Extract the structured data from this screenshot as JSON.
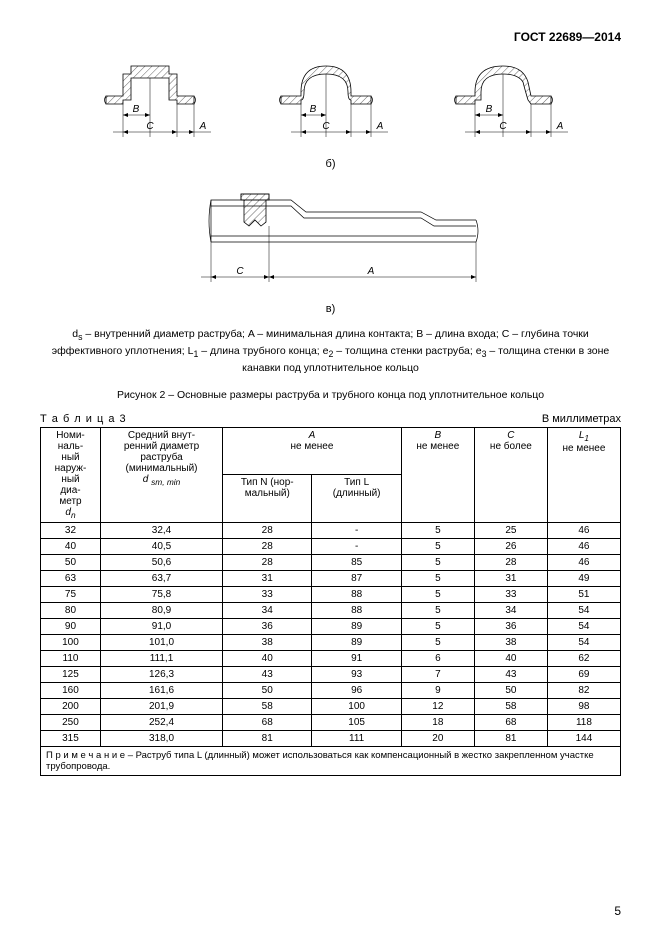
{
  "doc_header": "ГОСТ 22689—2014",
  "sublabel_b": "б)",
  "sublabel_v": "в)",
  "legend": "d<sub>s</sub> – внутренний диаметр раструба; A – минимальная длина контакта; B – длина входа; C – глубина точки эффективного уплотнения; L<sub>1</sub> – длина трубного конца; e<sub>2</sub> – толщина стенки раструба; e<sub>3</sub> – толщина стенки в зоне канавки под уплотнительное кольцо",
  "figure_caption": "Рисунок 2 – Основные размеры раструба и трубного конца под уплотнительное кольцо",
  "table_label": "Т а б л и ц а   3",
  "table_units": "В миллиметрах",
  "table": {
    "headers": {
      "col0_l1": "Номи-",
      "col0_l2": "наль-",
      "col0_l3": "ный",
      "col0_l4": "наруж-",
      "col0_l5": "ный",
      "col0_l6": "диа-",
      "col0_l7": "метр",
      "col0_sym": "d<sub>n</sub>",
      "col1_l1": "Средний внут-",
      "col1_l2": "ренний диаметр",
      "col1_l3": "раструба",
      "col1_l4": "(минимальный)",
      "col1_sym": "d <sub>sm, min</sub>",
      "colA": "A",
      "colA_sub": "не менее",
      "colA_N": "Тип N (нор-",
      "colA_N2": "мальный)",
      "colA_L": "Тип L",
      "colA_L2": "(длинный)",
      "colB": "B",
      "colB_sub": "не менее",
      "colC": "C",
      "colC_sub": "не более",
      "colL1": "L<sub>1</sub>",
      "colL1_sub": "не менее"
    },
    "rows": [
      [
        "32",
        "32,4",
        "28",
        "-",
        "5",
        "25",
        "46"
      ],
      [
        "40",
        "40,5",
        "28",
        "-",
        "5",
        "26",
        "46"
      ],
      [
        "50",
        "50,6",
        "28",
        "85",
        "5",
        "28",
        "46"
      ],
      [
        "63",
        "63,7",
        "31",
        "87",
        "5",
        "31",
        "49"
      ],
      [
        "75",
        "75,8",
        "33",
        "88",
        "5",
        "33",
        "51"
      ],
      [
        "80",
        "80,9",
        "34",
        "88",
        "5",
        "34",
        "54"
      ],
      [
        "90",
        "91,0",
        "36",
        "89",
        "5",
        "36",
        "54"
      ],
      [
        "100",
        "101,0",
        "38",
        "89",
        "5",
        "38",
        "54"
      ],
      [
        "110",
        "111,1",
        "40",
        "91",
        "6",
        "40",
        "62"
      ],
      [
        "125",
        "126,3",
        "43",
        "93",
        "7",
        "43",
        "69"
      ],
      [
        "160",
        "161,6",
        "50",
        "96",
        "9",
        "50",
        "82"
      ],
      [
        "200",
        "201,9",
        "58",
        "100",
        "12",
        "58",
        "98"
      ],
      [
        "250",
        "252,4",
        "68",
        "105",
        "18",
        "68",
        "118"
      ],
      [
        "315",
        "318,0",
        "81",
        "111",
        "20",
        "81",
        "144"
      ]
    ],
    "note": "П р и м е ч а н и е – Раструб типа L (длинный) может использоваться как компенсационный в жестко закрепленном участке трубопровода."
  },
  "page_number": "5",
  "figure_labels": {
    "A": "A",
    "B": "B",
    "C": "C"
  },
  "colors": {
    "line": "#000000",
    "background": "#ffffff",
    "hatch": "#000000"
  }
}
